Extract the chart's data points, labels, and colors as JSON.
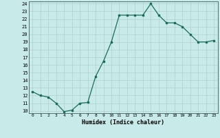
{
  "x": [
    0,
    1,
    2,
    3,
    4,
    5,
    6,
    7,
    8,
    9,
    10,
    11,
    12,
    13,
    14,
    15,
    16,
    17,
    18,
    19,
    20,
    21,
    22,
    23
  ],
  "y": [
    12.5,
    12.0,
    11.8,
    11.0,
    9.9,
    10.1,
    11.0,
    11.1,
    14.5,
    16.5,
    19.0,
    22.5,
    22.5,
    22.5,
    22.5,
    24.0,
    22.5,
    21.5,
    21.5,
    21.0,
    20.0,
    19.0,
    19.0,
    19.2
  ],
  "line_color": "#1a6b5a",
  "bg_color": "#c8eae8",
  "grid_color": "#b0d0ce",
  "xlabel": "Humidex (Indice chaleur)",
  "ytick_min": 10,
  "ytick_max": 24,
  "xtick_labels": [
    "0",
    "1",
    "2",
    "3",
    "4",
    "5",
    "6",
    "7",
    "8",
    "9",
    "10",
    "11",
    "12",
    "13",
    "14",
    "15",
    "16",
    "17",
    "18",
    "19",
    "20",
    "21",
    "22",
    "23"
  ]
}
